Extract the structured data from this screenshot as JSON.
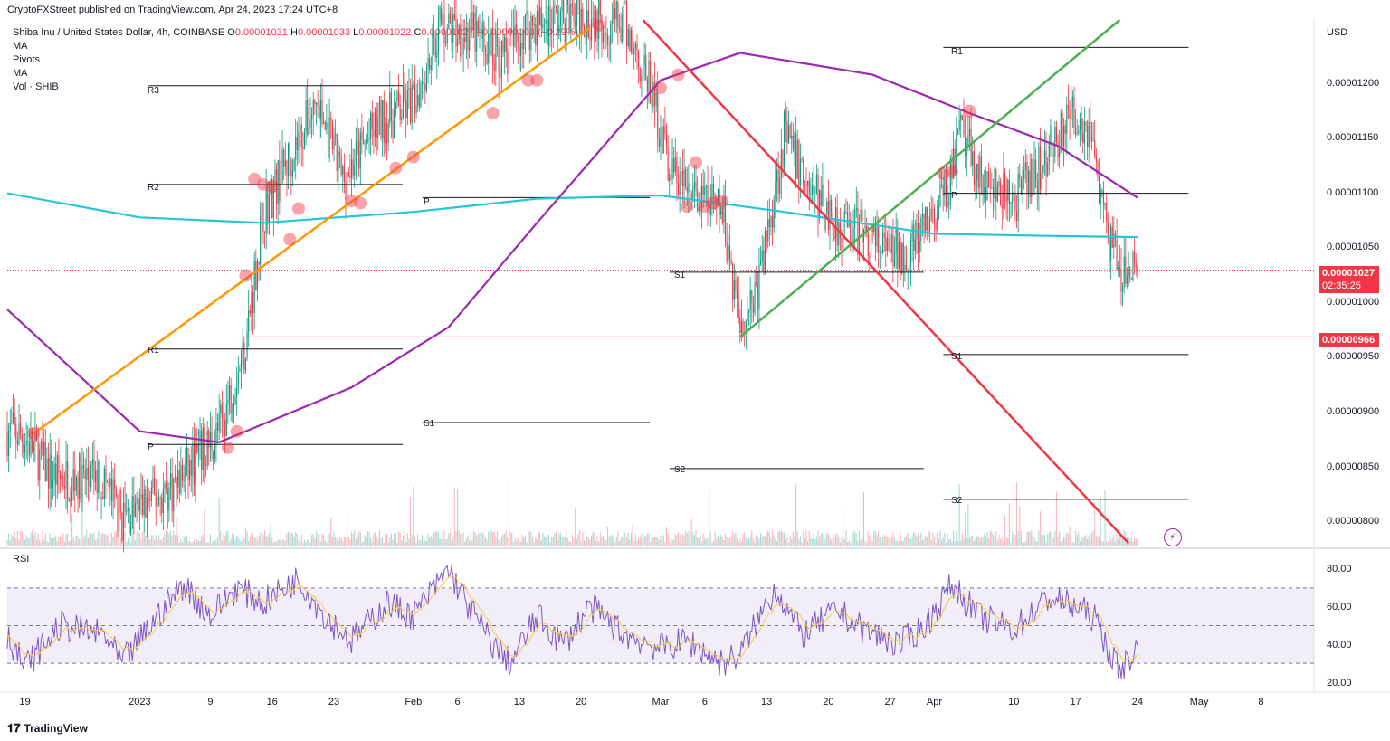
{
  "header": {
    "publisher": "CryptoFXStreet published on TradingView.com, Apr 24, 2023 17:24 UTC+8"
  },
  "symbol": {
    "name": "Shiba Inu / United States Dollar, 4h, COINBASE",
    "open_label": "O",
    "open": "0.00001031",
    "high_label": "H",
    "high": "0.00001033",
    "low_label": "L",
    "low": "0.00001022",
    "close_label": "C",
    "close": "0.00001027",
    "change": "−0.00000003 (−0.29%)"
  },
  "indicators": [
    "MA",
    "Pivots",
    "MA",
    "Vol · SHIB"
  ],
  "currency": "USD",
  "price_axis": {
    "ticks": [
      "0.00001200",
      "0.00001150",
      "0.00001100",
      "0.00001050",
      "0.00001000",
      "0.00000950",
      "0.00000900",
      "0.00000850",
      "0.00000800"
    ]
  },
  "tags": {
    "last_price": "0.00001027",
    "countdown": "02:35:25",
    "support_level": "0.00000966"
  },
  "time_axis": [
    "19",
    "2023",
    "9",
    "16",
    "23",
    "Feb",
    "6",
    "13",
    "20",
    "Mar",
    "6",
    "13",
    "20",
    "27",
    "Apr",
    "10",
    "17",
    "24",
    "May",
    "8"
  ],
  "pivot_labels": [
    "R3",
    "R2",
    "R1",
    "P",
    "P",
    "S1",
    "S1",
    "S2",
    "R1",
    "P",
    "S1",
    "S2"
  ],
  "rsi": {
    "label": "RSI",
    "ticks": [
      "80.00",
      "60.00",
      "40.00",
      "20.00"
    ]
  },
  "footer": {
    "brand": "TradingView"
  },
  "colors": {
    "up": "#089981",
    "down": "#f23645",
    "orange_trend": "#ff9800",
    "green_trend": "#4caf50",
    "red_trend": "#f23645",
    "ma_cyan": "#26c6da",
    "ma_purple": "#9c27b0",
    "rsi": "#7e57c2"
  },
  "chart_data": {
    "type": "candlestick",
    "title": "Shiba Inu / United States Dollar, 4h, COINBASE",
    "ylim": [
      7.75e-06,
      1.255e-05
    ],
    "x_range": [
      "2022-12-17",
      "2023-05-14"
    ],
    "close_path": [
      [
        "2022-12-17",
        8.8e-06
      ],
      [
        "2022-12-19",
        8.75e-06
      ],
      [
        "2022-12-22",
        8.4e-06
      ],
      [
        "2022-12-28",
        8.35e-06
      ],
      [
        "2022-12-30",
        8e-06
      ],
      [
        "2023-01-02",
        8.15e-06
      ],
      [
        "2023-01-05",
        8.3e-06
      ],
      [
        "2023-01-08",
        8.6e-06
      ],
      [
        "2023-01-10",
        8.8e-06
      ],
      [
        "2023-01-13",
        9.6e-06
      ],
      [
        "2023-01-15",
        1.08e-05
      ],
      [
        "2023-01-18",
        1.13e-05
      ],
      [
        "2023-01-21",
        1.18e-05
      ],
      [
        "2023-01-24",
        1.11e-05
      ],
      [
        "2023-01-28",
        1.16e-05
      ],
      [
        "2023-02-01",
        1.18e-05
      ],
      [
        "2023-02-04",
        1.25e-05
      ],
      [
        "2023-02-08",
        1.24e-05
      ],
      [
        "2023-02-11",
        1.22e-05
      ],
      [
        "2023-02-14",
        1.25e-05
      ],
      [
        "2023-02-20",
        1.26e-05
      ],
      [
        "2023-02-25",
        1.25e-05
      ],
      [
        "2023-02-28",
        1.19e-05
      ],
      [
        "2023-03-02",
        1.12e-05
      ],
      [
        "2023-03-05",
        1.09e-05
      ],
      [
        "2023-03-08",
        1.08e-05
      ],
      [
        "2023-03-10",
        9.8e-06
      ],
      [
        "2023-03-12",
        1.01e-05
      ],
      [
        "2023-03-15",
        1.15e-05
      ],
      [
        "2023-03-18",
        1.1e-05
      ],
      [
        "2023-03-21",
        1.07e-05
      ],
      [
        "2023-03-24",
        1.06e-05
      ],
      [
        "2023-03-27",
        1.04e-05
      ],
      [
        "2023-03-30",
        1.05e-05
      ],
      [
        "2023-04-02",
        1.09e-05
      ],
      [
        "2023-04-04",
        1.15e-05
      ],
      [
        "2023-04-07",
        1.1e-05
      ],
      [
        "2023-04-10",
        1.09e-05
      ],
      [
        "2023-04-13",
        1.12e-05
      ],
      [
        "2023-04-15",
        1.15e-05
      ],
      [
        "2023-04-17",
        1.17e-05
      ],
      [
        "2023-04-19",
        1.15e-05
      ],
      [
        "2023-04-20",
        1.08e-05
      ],
      [
        "2023-04-22",
        1.02e-05
      ],
      [
        "2023-04-24",
        1.027e-05
      ]
    ],
    "moving_averages": [
      {
        "name": "MA",
        "color": "#26c6da",
        "points": [
          [
            "2022-12-17",
            1.097e-05
          ],
          [
            "2023-01-01",
            1.075e-05
          ],
          [
            "2023-01-15",
            1.07e-05
          ],
          [
            "2023-02-01",
            1.08e-05
          ],
          [
            "2023-02-15",
            1.092e-05
          ],
          [
            "2023-03-01",
            1.095e-05
          ],
          [
            "2023-03-15",
            1.08e-05
          ],
          [
            "2023-04-01",
            1.06e-05
          ],
          [
            "2023-04-15",
            1.058e-05
          ],
          [
            "2023-04-24",
            1.057e-05
          ]
        ]
      },
      {
        "name": "MA",
        "color": "#9c27b0",
        "points": [
          [
            "2022-12-17",
            9.91e-06
          ],
          [
            "2023-01-01",
            8.8e-06
          ],
          [
            "2023-01-10",
            8.7e-06
          ],
          [
            "2023-01-25",
            9.2e-06
          ],
          [
            "2023-02-05",
            9.75e-06
          ],
          [
            "2023-02-15",
            1.07e-05
          ],
          [
            "2023-03-01",
            1.2e-05
          ],
          [
            "2023-03-10",
            1.225e-05
          ],
          [
            "2023-03-25",
            1.205e-05
          ],
          [
            "2023-04-05",
            1.17e-05
          ],
          [
            "2023-04-15",
            1.14e-05
          ],
          [
            "2023-04-24",
            1.093e-05
          ]
        ]
      }
    ],
    "trendlines": [
      {
        "color": "#ff9800",
        "from": [
          "2022-12-20",
          8.78e-06
        ],
        "to": [
          "2023-02-21",
          1.248e-05
        ]
      },
      {
        "color": "#4caf50",
        "from": [
          "2023-03-10",
          9.66e-06
        ],
        "to": [
          "2023-04-22",
          1.255e-05
        ]
      },
      {
        "color": "#f23645",
        "from": [
          "2023-02-27",
          1.255e-05
        ],
        "to": [
          "2023-04-23",
          7.78e-06
        ]
      }
    ],
    "horizontal_levels": [
      {
        "label": "support",
        "price": 9.66e-06,
        "color": "#f23645"
      }
    ],
    "pivots": [
      {
        "label": "R3",
        "price": 1.195e-05,
        "from": "2023-01-01",
        "to": "2023-01-31"
      },
      {
        "label": "R2",
        "price": 1.105e-05,
        "from": "2023-01-01",
        "to": "2023-01-31"
      },
      {
        "label": "R1",
        "price": 9.55e-06,
        "from": "2023-01-01",
        "to": "2023-01-31"
      },
      {
        "label": "P",
        "price": 8.68e-06,
        "from": "2023-01-01",
        "to": "2023-01-31"
      },
      {
        "label": "P",
        "price": 1.093e-05,
        "from": "2023-02-01",
        "to": "2023-02-28"
      },
      {
        "label": "S1",
        "price": 8.88e-06,
        "from": "2023-02-01",
        "to": "2023-02-28"
      },
      {
        "label": "S1",
        "price": 1.025e-05,
        "from": "2023-03-01",
        "to": "2023-03-31"
      },
      {
        "label": "S2",
        "price": 8.46e-06,
        "from": "2023-03-01",
        "to": "2023-03-31"
      },
      {
        "label": "R1",
        "price": 1.23e-05,
        "from": "2023-04-01",
        "to": "2023-04-30"
      },
      {
        "label": "P",
        "price": 1.097e-05,
        "from": "2023-04-01",
        "to": "2023-04-30"
      },
      {
        "label": "S1",
        "price": 9.5e-06,
        "from": "2023-04-01",
        "to": "2023-04-30"
      },
      {
        "label": "S2",
        "price": 8.18e-06,
        "from": "2023-04-01",
        "to": "2023-04-30"
      }
    ],
    "rsi": {
      "ylim": [
        20,
        80
      ],
      "bands": [
        30,
        50,
        70
      ],
      "points": [
        [
          "2022-12-17",
          45
        ],
        [
          "2022-12-19",
          28
        ],
        [
          "2022-12-23",
          50
        ],
        [
          "2022-12-28",
          45
        ],
        [
          "2022-12-30",
          30
        ],
        [
          "2023-01-03",
          55
        ],
        [
          "2023-01-06",
          72
        ],
        [
          "2023-01-09",
          55
        ],
        [
          "2023-01-12",
          70
        ],
        [
          "2023-01-15",
          62
        ],
        [
          "2023-01-19",
          75
        ],
        [
          "2023-01-22",
          55
        ],
        [
          "2023-01-25",
          42
        ],
        [
          "2023-01-29",
          62
        ],
        [
          "2023-02-01",
          55
        ],
        [
          "2023-02-05",
          80
        ],
        [
          "2023-02-07",
          62
        ],
        [
          "2023-02-10",
          40
        ],
        [
          "2023-02-12",
          30
        ],
        [
          "2023-02-15",
          55
        ],
        [
          "2023-02-18",
          40
        ],
        [
          "2023-02-21",
          60
        ],
        [
          "2023-02-25",
          45
        ],
        [
          "2023-03-01",
          38
        ],
        [
          "2023-03-04",
          42
        ],
        [
          "2023-03-08",
          30
        ],
        [
          "2023-03-10",
          35
        ],
        [
          "2023-03-14",
          70
        ],
        [
          "2023-03-17",
          45
        ],
        [
          "2023-03-21",
          58
        ],
        [
          "2023-03-24",
          48
        ],
        [
          "2023-03-28",
          40
        ],
        [
          "2023-03-31",
          50
        ],
        [
          "2023-04-03",
          72
        ],
        [
          "2023-04-06",
          55
        ],
        [
          "2023-04-10",
          48
        ],
        [
          "2023-04-14",
          65
        ],
        [
          "2023-04-17",
          60
        ],
        [
          "2023-04-19",
          55
        ],
        [
          "2023-04-21",
          35
        ],
        [
          "2023-04-22",
          25
        ],
        [
          "2023-04-23",
          32
        ],
        [
          "2023-04-24",
          38
        ]
      ]
    }
  }
}
